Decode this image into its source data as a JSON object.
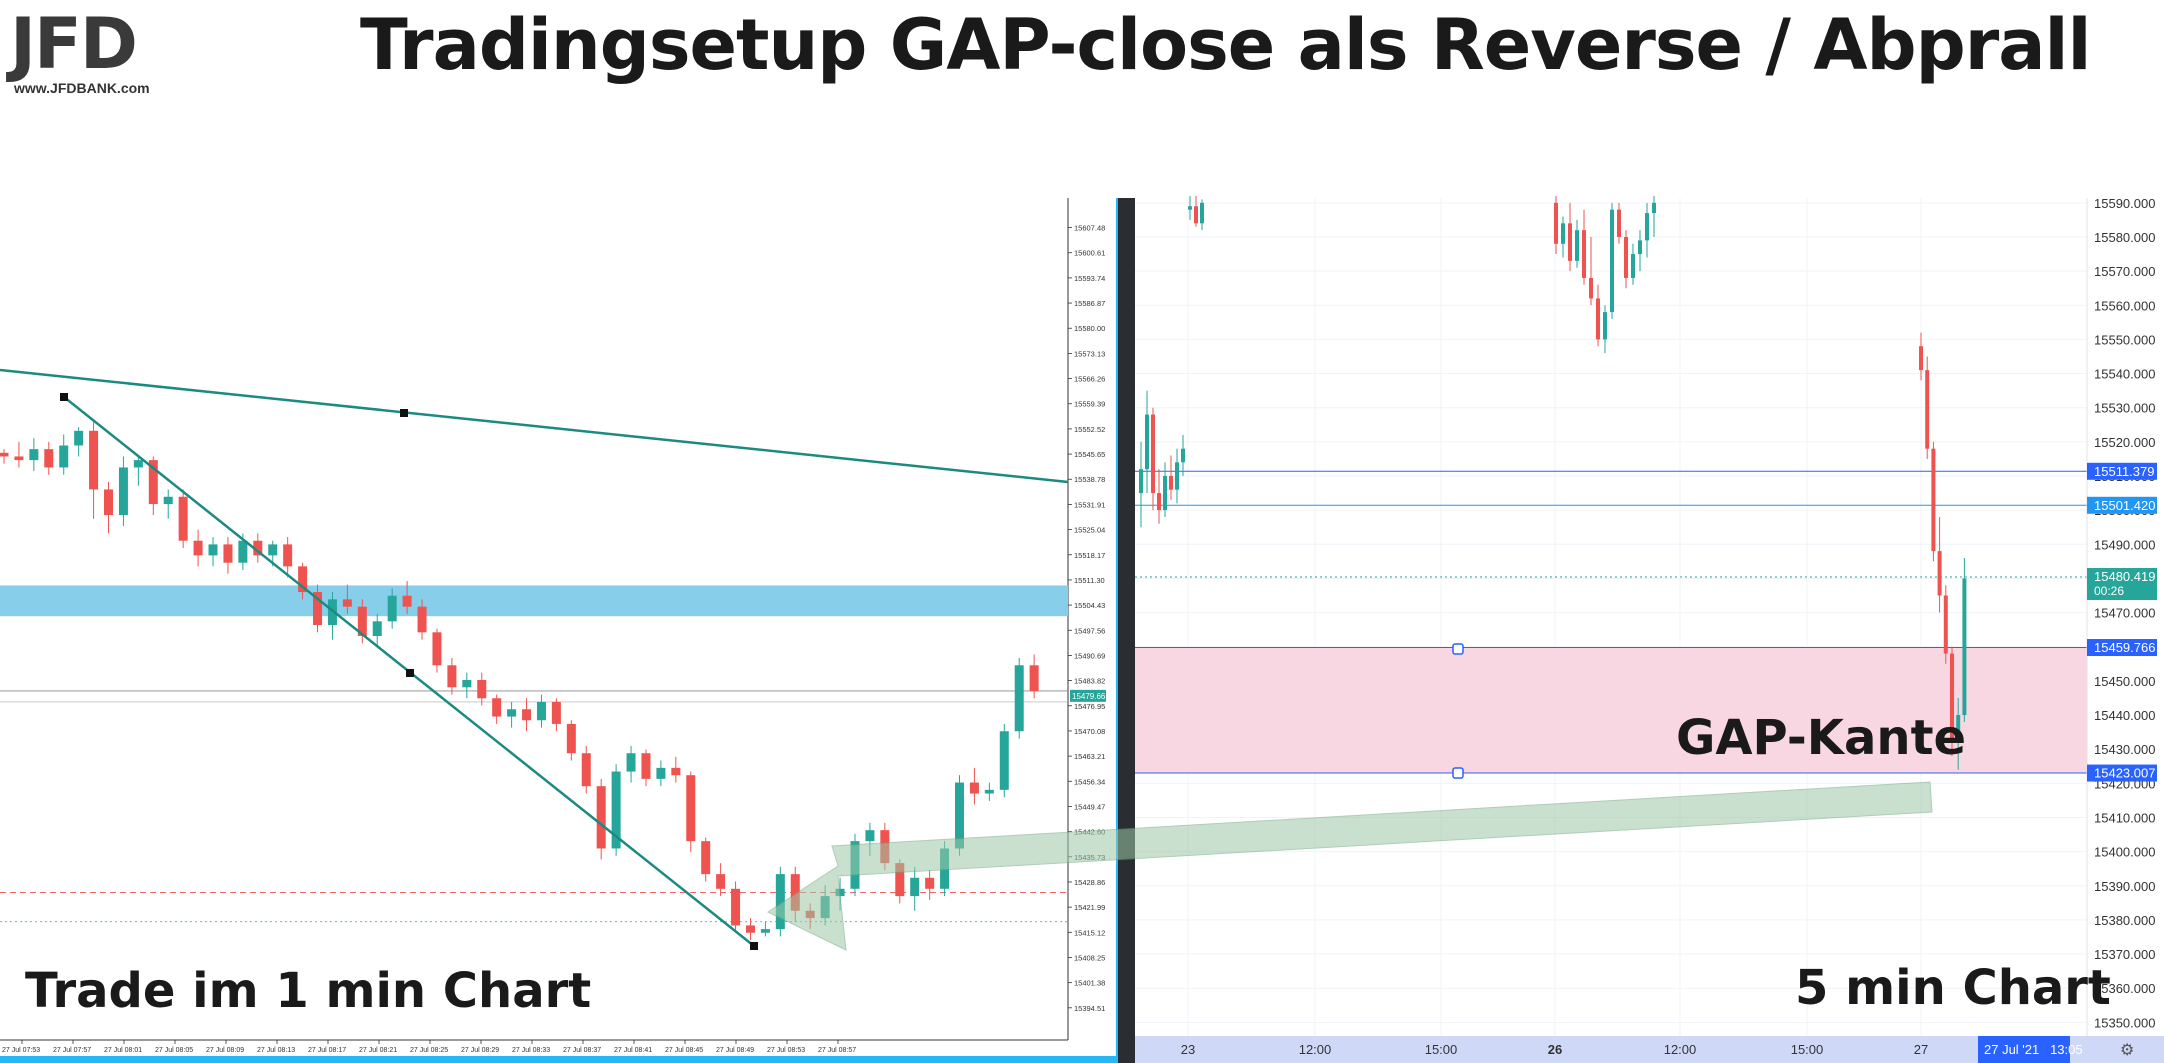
{
  "title": "Tradingsetup GAP-close als Reverse / Abprall",
  "logo": {
    "mark": "JFD",
    "url": "www.JFDBANK.com"
  },
  "colors": {
    "up": "#26a69a",
    "down": "#ef5350",
    "trend": "#1b8a80",
    "zone_blue": "#87ceeb",
    "zone_pink": "#f8d7e2",
    "axis_badge": "#2962ff"
  },
  "chart_data": [
    {
      "type": "line",
      "name": "1 min chart",
      "caption": "Trade im 1 min Chart",
      "y_ticks": [
        "15607.48",
        "15600.61",
        "15593.74",
        "15586.87",
        "15580.00",
        "15573.13",
        "15566.26",
        "15559.39",
        "15552.52",
        "15545.65",
        "15538.78",
        "15531.91",
        "15525.04",
        "15518.17",
        "15511.30",
        "15504.43",
        "15497.56",
        "15490.69",
        "15483.82",
        "15476.95",
        "15470.08",
        "15463.21",
        "15456.34",
        "15449.47",
        "15442.60",
        "15435.73",
        "15428.86",
        "15421.99",
        "15415.12",
        "15408.25",
        "15401.38",
        "15394.51"
      ],
      "x_ticks": [
        "27 Jul 07:53",
        "27 Jul 07:57",
        "27 Jul 08:01",
        "27 Jul 08:05",
        "27 Jul 08:09",
        "27 Jul 08:13",
        "27 Jul 08:17",
        "27 Jul 08:21",
        "27 Jul 08:25",
        "27 Jul 08:29",
        "27 Jul 08:33",
        "27 Jul 08:37",
        "27 Jul 08:41",
        "27 Jul 08:45",
        "27 Jul 08:49",
        "27 Jul 08:53",
        "27 Jul 08:57"
      ],
      "price_badge": "15479.66",
      "ylim": [
        15389,
        15615
      ],
      "zone": [
        15501.4,
        15509.8
      ],
      "candles": [
        [
          15546,
          15547,
          15543,
          15545
        ],
        [
          15545,
          15549,
          15542,
          15544
        ],
        [
          15544,
          15550,
          15541,
          15547
        ],
        [
          15547,
          15549,
          15540,
          15542
        ],
        [
          15542,
          15551,
          15540,
          15548
        ],
        [
          15548,
          15553,
          15545,
          15552
        ],
        [
          15552,
          15555,
          15528,
          15536
        ],
        [
          15536,
          15538,
          15524,
          15529
        ],
        [
          15529,
          15545,
          15526,
          15542
        ],
        [
          15542,
          15545,
          15537,
          15544
        ],
        [
          15544,
          15545,
          15529,
          15532
        ],
        [
          15532,
          15536,
          15528,
          15534
        ],
        [
          15534,
          15536,
          15520,
          15522
        ],
        [
          15522,
          15525,
          15515,
          15518
        ],
        [
          15518,
          15523,
          15515,
          15521
        ],
        [
          15521,
          15523,
          15513,
          15516
        ],
        [
          15516,
          15524,
          15514,
          15522
        ],
        [
          15522,
          15524,
          15516,
          15518
        ],
        [
          15518,
          15522,
          15515,
          15521
        ],
        [
          15521,
          15523,
          15512,
          15515
        ],
        [
          15515,
          15516,
          15506,
          15508
        ],
        [
          15508,
          15510,
          15497,
          15499
        ],
        [
          15499,
          15508,
          15495,
          15506
        ],
        [
          15506,
          15510,
          15502,
          15504
        ],
        [
          15504,
          15506,
          15494,
          15496
        ],
        [
          15496,
          15502,
          15493,
          15500
        ],
        [
          15500,
          15509,
          15498,
          15507
        ],
        [
          15507,
          15511,
          15502,
          15504
        ],
        [
          15504,
          15506,
          15495,
          15497
        ],
        [
          15497,
          15498,
          15486,
          15488
        ],
        [
          15488,
          15490,
          15480,
          15482
        ],
        [
          15482,
          15486,
          15479,
          15484
        ],
        [
          15484,
          15486,
          15477,
          15479
        ],
        [
          15479,
          15480,
          15472,
          15474
        ],
        [
          15474,
          15478,
          15471,
          15476
        ],
        [
          15476,
          15479,
          15470,
          15473
        ],
        [
          15473,
          15480,
          15471,
          15478
        ],
        [
          15478,
          15479,
          15470,
          15472
        ],
        [
          15472,
          15473,
          15462,
          15464
        ],
        [
          15464,
          15466,
          15453,
          15455
        ],
        [
          15455,
          15457,
          15435,
          15438
        ],
        [
          15438,
          15461,
          15436,
          15459
        ],
        [
          15459,
          15466,
          15456,
          15464
        ],
        [
          15464,
          15465,
          15455,
          15457
        ],
        [
          15457,
          15462,
          15455,
          15460
        ],
        [
          15460,
          15463,
          15456,
          15458
        ],
        [
          15458,
          15459,
          15437,
          15440
        ],
        [
          15440,
          15441,
          15429,
          15431
        ],
        [
          15431,
          15434,
          15425,
          15427
        ],
        [
          15427,
          15429,
          15415,
          15417
        ],
        [
          15417,
          15419,
          15413,
          15415
        ],
        [
          15415,
          15418,
          15414,
          15416
        ],
        [
          15416,
          15433,
          15414,
          15431
        ],
        [
          15431,
          15433,
          15418,
          15421
        ],
        [
          15421,
          15423,
          15416,
          15419
        ],
        [
          15419,
          15428,
          15417,
          15425
        ],
        [
          15425,
          15430,
          15421,
          15427
        ],
        [
          15427,
          15442,
          15425,
          15440
        ],
        [
          15440,
          15445,
          15436,
          15443
        ],
        [
          15443,
          15445,
          15432,
          15434
        ],
        [
          15434,
          15435,
          15423,
          15425
        ],
        [
          15425,
          15433,
          15421,
          15430
        ],
        [
          15430,
          15432,
          15424,
          15427
        ],
        [
          15427,
          15440,
          15425,
          15438
        ],
        [
          15438,
          15458,
          15436,
          15456
        ],
        [
          15456,
          15460,
          15450,
          15453
        ],
        [
          15453,
          15456,
          15451,
          15454
        ],
        [
          15454,
          15472,
          15452,
          15470
        ],
        [
          15470,
          15490,
          15468,
          15488
        ],
        [
          15488,
          15491,
          15479,
          15481
        ]
      ]
    },
    {
      "type": "line",
      "name": "5 min chart",
      "caption": "5 min Chart",
      "annotation": "GAP-Kante",
      "y_ticks": [
        "15590.000",
        "15580.000",
        "15570.000",
        "15560.000",
        "15550.000",
        "15540.000",
        "15530.000",
        "15520.000",
        "15510.000",
        "15500.000",
        "15490.000",
        "15480.000",
        "15470.000",
        "15460.000",
        "15450.000",
        "15440.000",
        "15430.000",
        "15420.000",
        "15410.000",
        "15400.000",
        "15390.000",
        "15380.000",
        "15370.000",
        "15360.000",
        "15350.000"
      ],
      "x_ticks": [
        "23",
        "12:00",
        "15:00",
        "26",
        "12:00",
        "15:00",
        "27"
      ],
      "date_badge": "27 Jul '21   13:05",
      "levels": [
        {
          "label": "15511.379",
          "value": 15511.379,
          "color": "#2962ff"
        },
        {
          "label": "15501.420",
          "value": 15501.42,
          "color": "#2196f3"
        },
        {
          "label": "15480.419",
          "sub": "00:26",
          "value": 15480.419,
          "color": "#26a69a"
        },
        {
          "label": "15459.766",
          "value": 15459.766,
          "color": "#2962ff"
        },
        {
          "label": "15423.007",
          "value": 15423.007,
          "color": "#2962ff"
        }
      ],
      "ylim": [
        15346,
        15592
      ],
      "zone": [
        15423.007,
        15459.766
      ],
      "candles": [
        [
          15505,
          15520,
          15495,
          15512
        ],
        [
          15512,
          15535,
          15505,
          15528
        ],
        [
          15528,
          15530,
          15500,
          15505
        ],
        [
          15505,
          15512,
          15496,
          15500
        ],
        [
          15500,
          15514,
          15498,
          15510
        ],
        [
          15510,
          15516,
          15503,
          15506
        ],
        [
          15506,
          15518,
          15502,
          15514
        ],
        [
          15514,
          15522,
          15510,
          15518
        ],
        [
          15588,
          15592,
          15585,
          15589
        ],
        [
          15589,
          15592,
          15583,
          15584
        ],
        [
          15584,
          15591,
          15582,
          15590
        ],
        [
          15590,
          15592,
          15575,
          15578
        ],
        [
          15578,
          15586,
          15574,
          15584
        ],
        [
          15584,
          15590,
          15570,
          15573
        ],
        [
          15573,
          15585,
          15571,
          15582
        ],
        [
          15582,
          15588,
          15566,
          15568
        ],
        [
          15568,
          15580,
          15560,
          15562
        ],
        [
          15562,
          15566,
          15548,
          15550
        ],
        [
          15550,
          15560,
          15546,
          15558
        ],
        [
          15558,
          15590,
          15556,
          15588
        ],
        [
          15588,
          15590,
          15578,
          15580
        ],
        [
          15580,
          15582,
          15565,
          15568
        ],
        [
          15568,
          15578,
          15566,
          15575
        ],
        [
          15575,
          15582,
          15570,
          15579
        ],
        [
          15579,
          15590,
          15574,
          15587
        ],
        [
          15587,
          15592,
          15580,
          15590
        ],
        [
          15548,
          15552,
          15538,
          15541
        ],
        [
          15541,
          15545,
          15515,
          15518
        ],
        [
          15518,
          15520,
          15485,
          15488
        ],
        [
          15488,
          15498,
          15470,
          15475
        ],
        [
          15475,
          15478,
          15455,
          15458
        ],
        [
          15458,
          15460,
          15428,
          15432
        ],
        [
          15432,
          15445,
          15424,
          15440
        ],
        [
          15440,
          15486,
          15438,
          15480
        ]
      ]
    }
  ]
}
